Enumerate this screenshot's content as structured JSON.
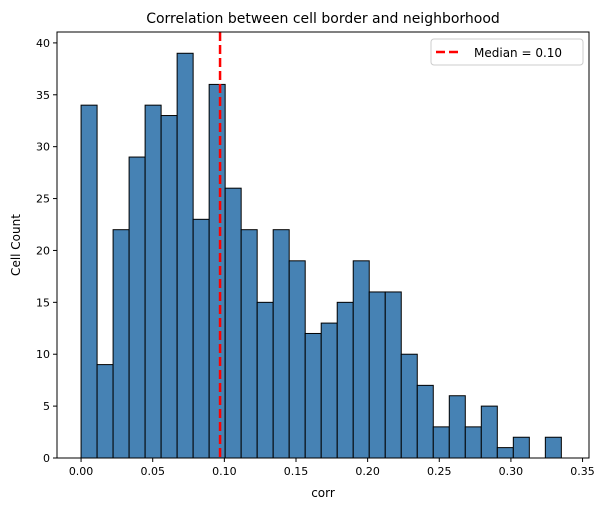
{
  "chart_data": {
    "type": "bar",
    "subtype": "histogram",
    "title": "Correlation between cell border and neighborhood",
    "xlabel": "corr",
    "ylabel": "Cell Count",
    "bin_start": 0.0,
    "bin_end": 0.3352,
    "values": [
      34,
      9,
      22,
      29,
      34,
      33,
      39,
      23,
      36,
      26,
      22,
      15,
      22,
      19,
      12,
      13,
      15,
      19,
      16,
      16,
      10,
      7,
      3,
      6,
      3,
      5,
      1,
      2,
      0,
      2
    ],
    "xlim": [
      -0.0168,
      0.3545
    ],
    "ylim": [
      0,
      41.05
    ],
    "xticks": [
      "0.00",
      "0.05",
      "0.10",
      "0.15",
      "0.20",
      "0.25",
      "0.30",
      "0.35"
    ],
    "yticks": [
      "0",
      "5",
      "10",
      "15",
      "20",
      "25",
      "30",
      "35",
      "40"
    ],
    "grid": false,
    "bar_color": "#4682b4",
    "edge_color": "#000000",
    "median_line": {
      "value": 0.097,
      "color": "#ff0000",
      "style": "dashed",
      "label": "Median = 0.10"
    },
    "legend_position": "top-right"
  }
}
